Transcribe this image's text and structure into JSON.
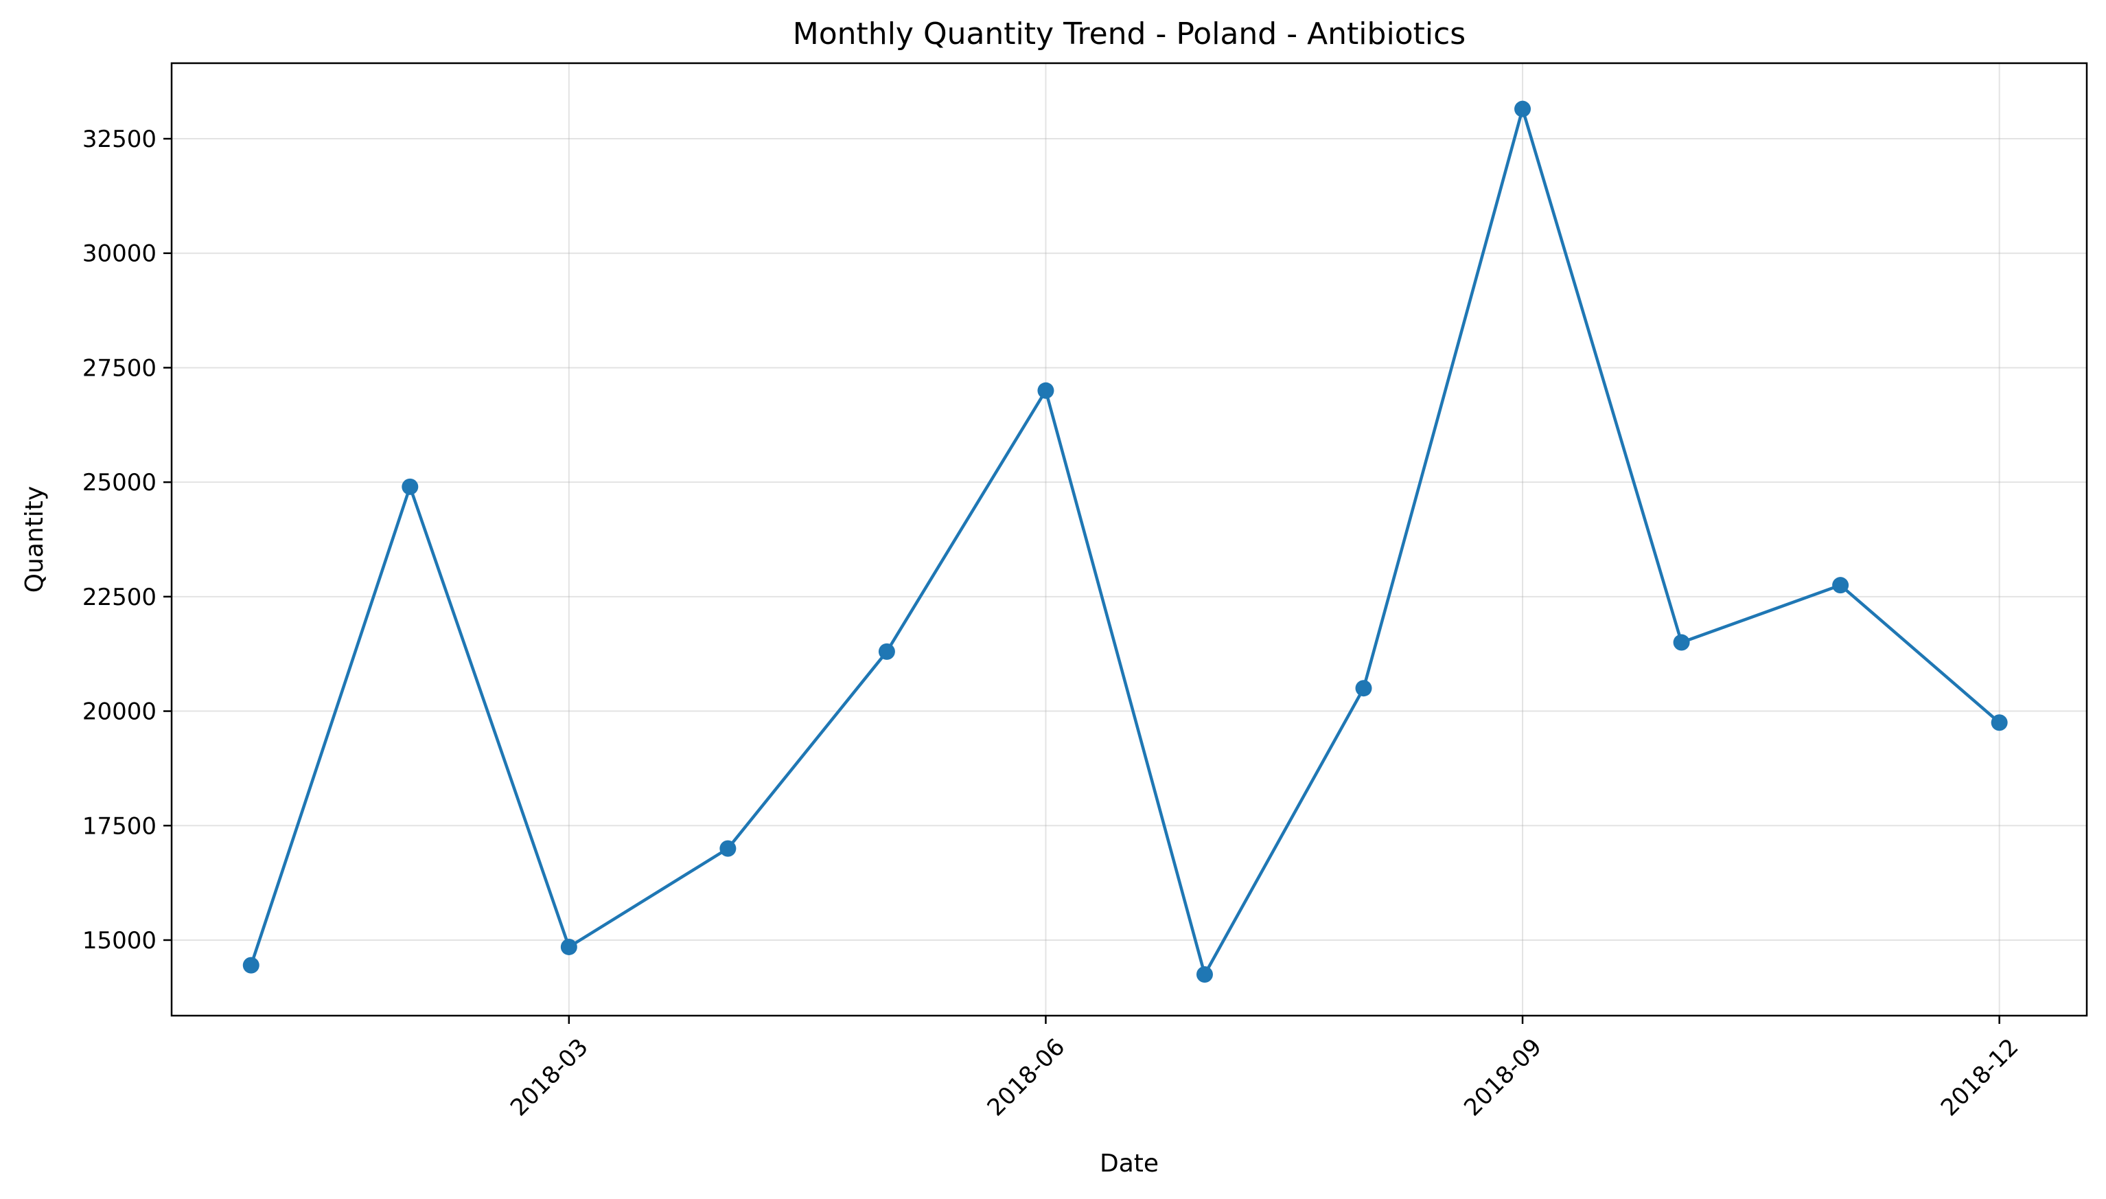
{
  "chart_data": {
    "type": "line",
    "title": "Monthly Quantity Trend - Poland - Antibiotics",
    "xlabel": "Date",
    "ylabel": "Quantity",
    "x": [
      "2018-01",
      "2018-02",
      "2018-03",
      "2018-04",
      "2018-05",
      "2018-06",
      "2018-07",
      "2018-08",
      "2018-09",
      "2018-10",
      "2018-11",
      "2018-12"
    ],
    "x_tick_labels": [
      "2018-03",
      "2018-06",
      "2018-09",
      "2018-12"
    ],
    "x_tick_months": [
      2,
      5,
      8,
      11
    ],
    "xlim_months": [
      -0.5,
      11.55
    ],
    "y_ticks": [
      15000,
      17500,
      20000,
      22500,
      25000,
      27500,
      30000,
      32500
    ],
    "ylim": [
      13350,
      34150
    ],
    "grid": true,
    "series": [
      {
        "name": "Quantity",
        "color": "#1f77b4",
        "values": [
          14450,
          24900,
          14850,
          17000,
          21300,
          27000,
          14250,
          20500,
          33150,
          21500,
          22750,
          19750
        ]
      }
    ]
  }
}
